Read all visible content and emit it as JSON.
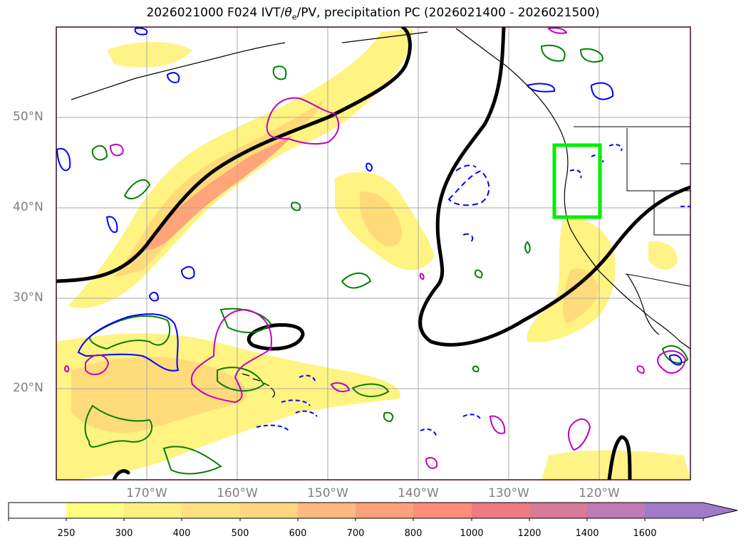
{
  "title": {
    "prefix": "2026021000 F024 IVT/",
    "theta": "θ",
    "theta_sub": "e",
    "suffix": "/PV, precipitation PC (2026021400 - 2026021500)"
  },
  "map": {
    "projection": "PlateCarree",
    "extent": {
      "lon_min": -180,
      "lon_max": -110,
      "lat_min": 10,
      "lat_max": 60
    },
    "lat_ticks": [
      {
        "value": 50,
        "label": "50°N"
      },
      {
        "value": 40,
        "label": "40°N"
      },
      {
        "value": 30,
        "label": "30°N"
      },
      {
        "value": 20,
        "label": "20°N"
      }
    ],
    "lon_ticks": [
      {
        "value": -170,
        "label": "170°W"
      },
      {
        "value": -160,
        "label": "160°W"
      },
      {
        "value": -150,
        "label": "150°W"
      },
      {
        "value": -140,
        "label": "140°W"
      },
      {
        "value": -130,
        "label": "130°W"
      },
      {
        "value": -120,
        "label": "120°W"
      }
    ],
    "gridlines": true,
    "highlight_box": {
      "lon": [
        -125,
        -120
      ],
      "lat": [
        39,
        47
      ],
      "color": "#00ee00"
    },
    "colors": {
      "thick_contour": "#000000",
      "theta_positive": "#008000",
      "theta_negative": "#0000ff",
      "pv": "#c000c0",
      "coastline": "#000000"
    }
  },
  "colorbar": {
    "levels": [
      "250",
      "300",
      "400",
      "500",
      "600",
      "700",
      "800",
      "1000",
      "1200",
      "1400",
      "1600"
    ],
    "colors": [
      "#ffffff",
      "#ffff80",
      "#ffee80",
      "#ffe080",
      "#ffd580",
      "#ffb880",
      "#ffa07a",
      "#ff8c7a",
      "#ee7a80",
      "#d87a98",
      "#c07ab8",
      "#a07ac8"
    ],
    "extend": "max"
  }
}
